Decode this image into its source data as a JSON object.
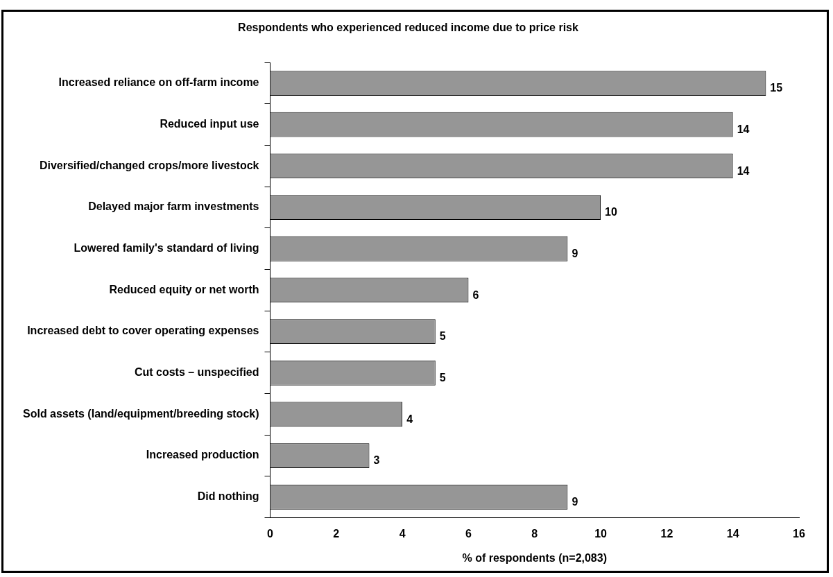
{
  "chart_data": {
    "type": "bar",
    "orientation": "horizontal",
    "title": "Respondents who experienced reduced income due to price risk",
    "xlabel": "% of respondents (n=2,083)",
    "categories": [
      "Increased reliance on off-farm income",
      "Reduced input use",
      "Diversified/changed crops/more livestock",
      "Delayed major farm investments",
      "Lowered family's standard of living",
      "Reduced equity or net worth",
      "Increased debt to cover operating expenses",
      "Cut costs – unspecified",
      "Sold assets (land/equipment/breeding stock)",
      "Increased production",
      "Did nothing"
    ],
    "values": [
      15,
      14,
      14,
      10,
      9,
      6,
      5,
      5,
      4,
      3,
      9
    ],
    "color": "#969696",
    "xlim": [
      0,
      16
    ],
    "xticks": [
      0,
      2,
      4,
      6,
      8,
      10,
      12,
      14,
      16
    ],
    "grid": false,
    "legend": false,
    "data_labels": true
  }
}
